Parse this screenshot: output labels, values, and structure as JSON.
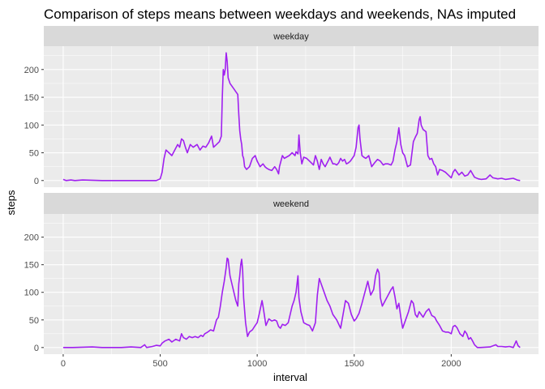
{
  "chart_data": {
    "type": "line",
    "title": "Comparison of steps means between weekdays and weekends, NAs imputed",
    "xlabel": "interval",
    "ylabel": "steps",
    "xlim": [
      -100,
      2450
    ],
    "ylim": [
      -12,
      242
    ],
    "x_ticks": [
      0,
      500,
      1000,
      1500,
      2000
    ],
    "y_ticks": [
      0,
      50,
      100,
      150,
      200
    ],
    "grid": true,
    "line_color": "#a020f0",
    "panel_background": "#ebebeb",
    "strip_background": "#d9d9d9",
    "panels": [
      {
        "label": "weekday",
        "points": [
          [
            0,
            2
          ],
          [
            15,
            0
          ],
          [
            40,
            1
          ],
          [
            60,
            0
          ],
          [
            100,
            1
          ],
          [
            200,
            0
          ],
          [
            300,
            0
          ],
          [
            400,
            0
          ],
          [
            480,
            0
          ],
          [
            500,
            3
          ],
          [
            510,
            15
          ],
          [
            520,
            40
          ],
          [
            530,
            55
          ],
          [
            545,
            50
          ],
          [
            560,
            45
          ],
          [
            575,
            55
          ],
          [
            590,
            65
          ],
          [
            600,
            60
          ],
          [
            610,
            75
          ],
          [
            620,
            72
          ],
          [
            630,
            60
          ],
          [
            640,
            50
          ],
          [
            655,
            65
          ],
          [
            670,
            60
          ],
          [
            690,
            65
          ],
          [
            705,
            55
          ],
          [
            720,
            62
          ],
          [
            735,
            60
          ],
          [
            750,
            68
          ],
          [
            765,
            80
          ],
          [
            775,
            60
          ],
          [
            790,
            65
          ],
          [
            805,
            70
          ],
          [
            815,
            80
          ],
          [
            820,
            150
          ],
          [
            825,
            200
          ],
          [
            830,
            190
          ],
          [
            835,
            200
          ],
          [
            840,
            230
          ],
          [
            845,
            215
          ],
          [
            850,
            185
          ],
          [
            860,
            175
          ],
          [
            880,
            165
          ],
          [
            890,
            160
          ],
          [
            900,
            155
          ],
          [
            905,
            120
          ],
          [
            910,
            90
          ],
          [
            915,
            75
          ],
          [
            920,
            65
          ],
          [
            925,
            45
          ],
          [
            930,
            40
          ],
          [
            935,
            25
          ],
          [
            945,
            20
          ],
          [
            960,
            25
          ],
          [
            975,
            40
          ],
          [
            990,
            45
          ],
          [
            1000,
            35
          ],
          [
            1015,
            25
          ],
          [
            1030,
            30
          ],
          [
            1040,
            25
          ],
          [
            1050,
            22
          ],
          [
            1060,
            20
          ],
          [
            1075,
            18
          ],
          [
            1090,
            25
          ],
          [
            1100,
            20
          ],
          [
            1110,
            12
          ],
          [
            1115,
            25
          ],
          [
            1130,
            45
          ],
          [
            1140,
            40
          ],
          [
            1150,
            42
          ],
          [
            1165,
            45
          ],
          [
            1180,
            50
          ],
          [
            1195,
            45
          ],
          [
            1200,
            52
          ],
          [
            1210,
            48
          ],
          [
            1215,
            82
          ],
          [
            1222,
            50
          ],
          [
            1230,
            30
          ],
          [
            1240,
            42
          ],
          [
            1255,
            40
          ],
          [
            1270,
            35
          ],
          [
            1290,
            28
          ],
          [
            1300,
            45
          ],
          [
            1310,
            35
          ],
          [
            1320,
            20
          ],
          [
            1330,
            38
          ],
          [
            1340,
            30
          ],
          [
            1350,
            25
          ],
          [
            1365,
            35
          ],
          [
            1375,
            42
          ],
          [
            1390,
            30
          ],
          [
            1400,
            30
          ],
          [
            1410,
            28
          ],
          [
            1420,
            32
          ],
          [
            1430,
            40
          ],
          [
            1440,
            35
          ],
          [
            1450,
            38
          ],
          [
            1460,
            30
          ],
          [
            1470,
            32
          ],
          [
            1480,
            35
          ],
          [
            1500,
            45
          ],
          [
            1510,
            60
          ],
          [
            1520,
            95
          ],
          [
            1525,
            100
          ],
          [
            1530,
            75
          ],
          [
            1540,
            45
          ],
          [
            1550,
            42
          ],
          [
            1560,
            40
          ],
          [
            1575,
            45
          ],
          [
            1590,
            25
          ],
          [
            1605,
            32
          ],
          [
            1620,
            38
          ],
          [
            1635,
            35
          ],
          [
            1650,
            28
          ],
          [
            1660,
            30
          ],
          [
            1675,
            30
          ],
          [
            1690,
            28
          ],
          [
            1700,
            35
          ],
          [
            1710,
            55
          ],
          [
            1720,
            70
          ],
          [
            1730,
            95
          ],
          [
            1740,
            65
          ],
          [
            1750,
            50
          ],
          [
            1760,
            45
          ],
          [
            1775,
            25
          ],
          [
            1790,
            28
          ],
          [
            1805,
            70
          ],
          [
            1815,
            78
          ],
          [
            1825,
            85
          ],
          [
            1835,
            110
          ],
          [
            1840,
            115
          ],
          [
            1845,
            100
          ],
          [
            1855,
            92
          ],
          [
            1870,
            88
          ],
          [
            1880,
            45
          ],
          [
            1890,
            38
          ],
          [
            1900,
            40
          ],
          [
            1910,
            30
          ],
          [
            1920,
            25
          ],
          [
            1930,
            10
          ],
          [
            1940,
            20
          ],
          [
            1955,
            18
          ],
          [
            1970,
            15
          ],
          [
            1985,
            10
          ],
          [
            2000,
            5
          ],
          [
            2010,
            15
          ],
          [
            2020,
            20
          ],
          [
            2030,
            15
          ],
          [
            2040,
            10
          ],
          [
            2055,
            15
          ],
          [
            2070,
            8
          ],
          [
            2085,
            10
          ],
          [
            2100,
            18
          ],
          [
            2110,
            12
          ],
          [
            2120,
            6
          ],
          [
            2140,
            3
          ],
          [
            2155,
            2
          ],
          [
            2180,
            3
          ],
          [
            2200,
            10
          ],
          [
            2215,
            5
          ],
          [
            2240,
            3
          ],
          [
            2260,
            4
          ],
          [
            2280,
            2
          ],
          [
            2300,
            3
          ],
          [
            2320,
            4
          ],
          [
            2340,
            1
          ],
          [
            2355,
            0
          ]
        ]
      },
      {
        "label": "weekend",
        "points": [
          [
            0,
            0
          ],
          [
            50,
            0
          ],
          [
            150,
            1
          ],
          [
            200,
            0
          ],
          [
            300,
            0
          ],
          [
            350,
            1
          ],
          [
            400,
            0
          ],
          [
            420,
            5
          ],
          [
            430,
            0
          ],
          [
            460,
            2
          ],
          [
            480,
            4
          ],
          [
            500,
            3
          ],
          [
            510,
            8
          ],
          [
            525,
            12
          ],
          [
            545,
            15
          ],
          [
            560,
            10
          ],
          [
            580,
            15
          ],
          [
            600,
            12
          ],
          [
            610,
            25
          ],
          [
            620,
            18
          ],
          [
            635,
            15
          ],
          [
            650,
            20
          ],
          [
            665,
            18
          ],
          [
            680,
            20
          ],
          [
            695,
            18
          ],
          [
            710,
            22
          ],
          [
            720,
            20
          ],
          [
            730,
            25
          ],
          [
            745,
            28
          ],
          [
            760,
            32
          ],
          [
            775,
            30
          ],
          [
            790,
            50
          ],
          [
            800,
            55
          ],
          [
            810,
            75
          ],
          [
            820,
            100
          ],
          [
            830,
            120
          ],
          [
            840,
            145
          ],
          [
            845,
            162
          ],
          [
            850,
            160
          ],
          [
            860,
            130
          ],
          [
            870,
            115
          ],
          [
            880,
            100
          ],
          [
            890,
            85
          ],
          [
            900,
            75
          ],
          [
            905,
            115
          ],
          [
            910,
            130
          ],
          [
            915,
            150
          ],
          [
            920,
            160
          ],
          [
            925,
            140
          ],
          [
            930,
            90
          ],
          [
            940,
            45
          ],
          [
            950,
            20
          ],
          [
            960,
            28
          ],
          [
            975,
            32
          ],
          [
            990,
            40
          ],
          [
            1000,
            45
          ],
          [
            1010,
            60
          ],
          [
            1025,
            85
          ],
          [
            1030,
            75
          ],
          [
            1045,
            40
          ],
          [
            1060,
            52
          ],
          [
            1075,
            48
          ],
          [
            1090,
            50
          ],
          [
            1100,
            48
          ],
          [
            1110,
            38
          ],
          [
            1120,
            35
          ],
          [
            1130,
            42
          ],
          [
            1145,
            40
          ],
          [
            1160,
            45
          ],
          [
            1170,
            60
          ],
          [
            1180,
            75
          ],
          [
            1190,
            85
          ],
          [
            1200,
            100
          ],
          [
            1210,
            130
          ],
          [
            1215,
            90
          ],
          [
            1225,
            65
          ],
          [
            1240,
            45
          ],
          [
            1255,
            42
          ],
          [
            1270,
            40
          ],
          [
            1285,
            30
          ],
          [
            1300,
            45
          ],
          [
            1310,
            95
          ],
          [
            1320,
            125
          ],
          [
            1330,
            115
          ],
          [
            1345,
            100
          ],
          [
            1360,
            85
          ],
          [
            1375,
            75
          ],
          [
            1390,
            60
          ],
          [
            1410,
            50
          ],
          [
            1430,
            35
          ],
          [
            1445,
            65
          ],
          [
            1455,
            85
          ],
          [
            1470,
            80
          ],
          [
            1485,
            60
          ],
          [
            1500,
            48
          ],
          [
            1510,
            52
          ],
          [
            1525,
            62
          ],
          [
            1540,
            80
          ],
          [
            1555,
            100
          ],
          [
            1570,
            120
          ],
          [
            1585,
            95
          ],
          [
            1600,
            105
          ],
          [
            1610,
            130
          ],
          [
            1620,
            142
          ],
          [
            1628,
            135
          ],
          [
            1635,
            90
          ],
          [
            1645,
            75
          ],
          [
            1660,
            85
          ],
          [
            1675,
            95
          ],
          [
            1690,
            105
          ],
          [
            1700,
            110
          ],
          [
            1710,
            92
          ],
          [
            1720,
            70
          ],
          [
            1730,
            80
          ],
          [
            1740,
            55
          ],
          [
            1750,
            35
          ],
          [
            1765,
            50
          ],
          [
            1780,
            65
          ],
          [
            1795,
            85
          ],
          [
            1805,
            80
          ],
          [
            1815,
            60
          ],
          [
            1825,
            55
          ],
          [
            1835,
            65
          ],
          [
            1845,
            60
          ],
          [
            1855,
            55
          ],
          [
            1870,
            65
          ],
          [
            1885,
            70
          ],
          [
            1900,
            58
          ],
          [
            1915,
            55
          ],
          [
            1925,
            48
          ],
          [
            1940,
            40
          ],
          [
            1955,
            30
          ],
          [
            1970,
            28
          ],
          [
            1985,
            28
          ],
          [
            2000,
            25
          ],
          [
            2010,
            38
          ],
          [
            2020,
            40
          ],
          [
            2030,
            36
          ],
          [
            2045,
            25
          ],
          [
            2060,
            20
          ],
          [
            2070,
            30
          ],
          [
            2080,
            25
          ],
          [
            2090,
            15
          ],
          [
            2100,
            18
          ],
          [
            2110,
            12
          ],
          [
            2120,
            5
          ],
          [
            2135,
            0
          ],
          [
            2150,
            0
          ],
          [
            2200,
            1
          ],
          [
            2230,
            5
          ],
          [
            2240,
            2
          ],
          [
            2260,
            2
          ],
          [
            2280,
            1
          ],
          [
            2300,
            2
          ],
          [
            2320,
            0
          ],
          [
            2335,
            12
          ],
          [
            2345,
            3
          ],
          [
            2355,
            0
          ]
        ]
      }
    ]
  }
}
